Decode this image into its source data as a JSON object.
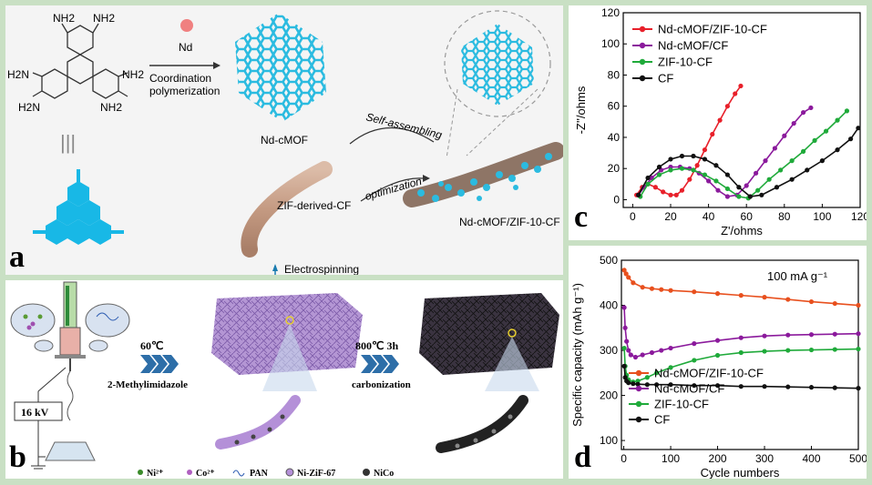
{
  "panel_a": {
    "letter": "a",
    "amine_labels": [
      "NH2",
      "NH2",
      "H2N",
      "H2N",
      "NH2",
      "NH2"
    ],
    "equiv_symbol": "|||",
    "nd_label": "Nd",
    "coord_line1": "Coordination",
    "coord_line2": "polymerization",
    "mof_label": "Nd-cMOF",
    "cf_label": "ZIF-derived-CF",
    "self_assembling": "Self-assembling",
    "optimization": "optimization",
    "composite_label": "Nd-cMOF/ZIF-10-CF",
    "electrospinning": "Electrospinning",
    "colors": {
      "mof": "#2bbbe0",
      "fiber": "#c9a590",
      "nd": "#f08080"
    }
  },
  "panel_b": {
    "letter": "b",
    "voltage": "16 kV",
    "step1_temp": "60℃",
    "step1_reagent": "2-Methylimidazole",
    "step2_temp": "800℃ 3h",
    "step2_process": "carbonization",
    "legend": [
      "Ni²⁺",
      "Co²⁺",
      "PAN",
      "Ni-ZiF-67",
      "NiCo"
    ]
  },
  "chart_data": [
    {
      "panel": "c",
      "type": "line",
      "title": "",
      "xlabel": "Z'/ohms",
      "ylabel": "-Z''/ohms",
      "xlim": [
        -5,
        120
      ],
      "ylim": [
        -5,
        120
      ],
      "xticks": [
        0,
        20,
        40,
        60,
        80,
        100,
        120
      ],
      "yticks": [
        0,
        20,
        40,
        60,
        80,
        100,
        120
      ],
      "legend_position": "top-left",
      "series": [
        {
          "name": "Nd-cMOF/ZIF-10-CF",
          "color": "#e8202a",
          "x": [
            2,
            5,
            8,
            12,
            16,
            20,
            23,
            26,
            30,
            34,
            38,
            42,
            46,
            50,
            54,
            57
          ],
          "y": [
            3,
            8,
            10,
            8,
            5,
            3,
            3,
            6,
            13,
            22,
            32,
            42,
            51,
            60,
            68,
            73
          ]
        },
        {
          "name": "Nd-cMOF/CF",
          "color": "#8b1a9c",
          "x": [
            3,
            6,
            10,
            15,
            20,
            25,
            30,
            35,
            40,
            45,
            50,
            55,
            60,
            65,
            70,
            75,
            80,
            85,
            90,
            94
          ],
          "y": [
            3,
            8,
            14,
            19,
            21,
            21,
            20,
            17,
            12,
            6,
            2,
            3,
            9,
            17,
            25,
            33,
            41,
            49,
            56,
            59
          ]
        },
        {
          "name": "ZIF-10-CF",
          "color": "#1faa3a",
          "x": [
            4,
            8,
            14,
            20,
            26,
            32,
            38,
            44,
            50,
            56,
            61,
            66,
            72,
            78,
            84,
            90,
            96,
            102,
            108,
            113
          ],
          "y": [
            2,
            10,
            16,
            19,
            20,
            19,
            16,
            12,
            7,
            2,
            1,
            6,
            13,
            19,
            25,
            31,
            38,
            44,
            51,
            57
          ]
        },
        {
          "name": "CF",
          "color": "#111111",
          "x": [
            3,
            8,
            14,
            20,
            26,
            32,
            38,
            44,
            50,
            56,
            62,
            68,
            76,
            84,
            92,
            100,
            108,
            115,
            119
          ],
          "y": [
            3,
            14,
            21,
            26,
            28,
            28,
            26,
            22,
            16,
            8,
            2,
            3,
            8,
            13,
            19,
            25,
            32,
            39,
            46
          ]
        }
      ]
    },
    {
      "panel": "d",
      "type": "line",
      "title": "",
      "annotation": "100 mA g⁻¹",
      "xlabel": "Cycle numbers",
      "ylabel": "Specific capacity (mAh g⁻¹)",
      "xlim": [
        -5,
        500
      ],
      "ylim": [
        80,
        500
      ],
      "xticks": [
        0,
        100,
        200,
        300,
        400,
        500
      ],
      "yticks": [
        100,
        200,
        300,
        400,
        500
      ],
      "legend_position": "bottom-left",
      "series": [
        {
          "name": "Nd-cMOF/ZIF-10-CF",
          "color": "#e8501e",
          "x": [
            1,
            5,
            10,
            20,
            40,
            60,
            80,
            100,
            150,
            200,
            250,
            300,
            350,
            400,
            450,
            500
          ],
          "y": [
            478,
            470,
            462,
            450,
            440,
            437,
            435,
            433,
            430,
            426,
            422,
            418,
            413,
            408,
            404,
            400
          ]
        },
        {
          "name": "Nd-cMOF/CF",
          "color": "#8b1a9c",
          "x": [
            1,
            3,
            6,
            10,
            15,
            25,
            40,
            60,
            80,
            100,
            150,
            200,
            250,
            300,
            350,
            400,
            450,
            500
          ],
          "y": [
            395,
            350,
            320,
            300,
            290,
            285,
            290,
            295,
            300,
            305,
            315,
            322,
            328,
            332,
            334,
            335,
            336,
            337
          ]
        },
        {
          "name": "ZIF-10-CF",
          "color": "#1faa3a",
          "x": [
            1,
            3,
            6,
            10,
            20,
            30,
            50,
            70,
            100,
            150,
            200,
            250,
            300,
            350,
            400,
            450,
            500
          ],
          "y": [
            305,
            265,
            245,
            235,
            230,
            232,
            240,
            250,
            262,
            278,
            289,
            295,
            298,
            300,
            301,
            302,
            303
          ]
        },
        {
          "name": "CF",
          "color": "#111111",
          "x": [
            1,
            3,
            6,
            10,
            20,
            30,
            50,
            70,
            100,
            150,
            200,
            250,
            300,
            350,
            400,
            450,
            500
          ],
          "y": [
            265,
            240,
            232,
            228,
            226,
            225,
            224,
            224,
            224,
            222,
            222,
            220,
            220,
            219,
            218,
            217,
            216
          ]
        }
      ]
    }
  ]
}
